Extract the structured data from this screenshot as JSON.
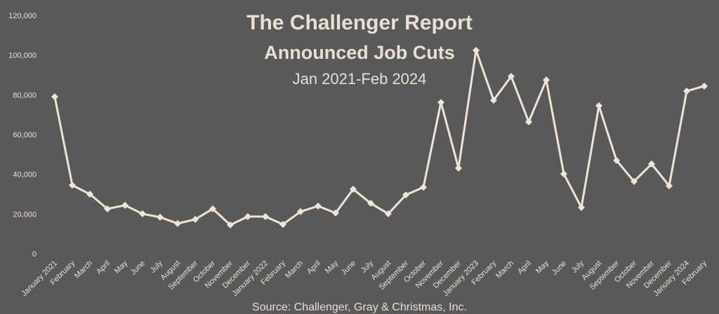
{
  "chart_data": {
    "type": "line",
    "title": "The Challenger Report",
    "subtitle": "Announced Job Cuts",
    "date_range": "Jan 2021-Feb 2024",
    "source": "Source: Challenger, Gray & Christmas, Inc.",
    "categories": [
      "January 2021",
      "February",
      "March",
      "April",
      "May",
      "June",
      "July",
      "August",
      "September",
      "October",
      "November",
      "December",
      "January 2022",
      "February",
      "March",
      "April",
      "May",
      "June",
      "July",
      "August",
      "September",
      "October",
      "November",
      "December",
      "January 2023",
      "February",
      "March",
      "April",
      "May",
      "June",
      "July",
      "August",
      "September",
      "October",
      "November",
      "December",
      "January 2024",
      "February"
    ],
    "values": [
      79000,
      34500,
      30000,
      22600,
      24400,
      20100,
      18400,
      15200,
      17300,
      22600,
      14500,
      18700,
      18700,
      14800,
      21200,
      24000,
      20500,
      32500,
      25400,
      20100,
      29600,
      33500,
      76200,
      43100,
      102400,
      77300,
      89300,
      66400,
      87500,
      40200,
      23300,
      74500,
      47000,
      36400,
      45200,
      34200,
      81900,
      84400
    ],
    "color": "#efe4d6",
    "ylim": [
      0,
      120000
    ],
    "yticks": [
      0,
      {
        "value": 20000,
        "label": "20,000"
      },
      {
        "value": 40000,
        "label": "40,000"
      },
      {
        "value": 60000,
        "label": "60,000"
      },
      {
        "value": 80000,
        "label": "80,000"
      },
      {
        "value": 100000,
        "label": "100,000"
      },
      {
        "value": 120000,
        "label": "120,000"
      }
    ]
  }
}
